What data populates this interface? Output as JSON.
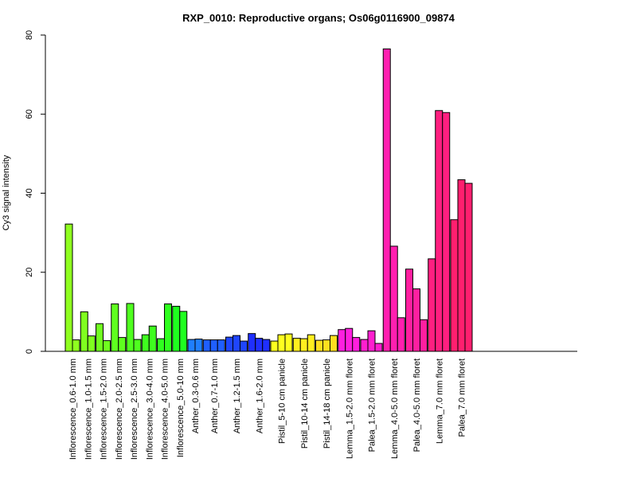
{
  "chart_data": {
    "type": "bar",
    "title": "RXP_0010: Reproductive organs; Os06g0116900_09874",
    "xlabel": "",
    "ylabel": "Cy3 signal intensity",
    "ylim": [
      0,
      80
    ],
    "yticks": [
      0,
      20,
      40,
      60,
      80
    ],
    "grid": false,
    "legend": "none",
    "groups": [
      {
        "label": "Inflorescence_0.6-1.0 mm",
        "color": "#8fff1f",
        "values": [
          32.2,
          2.9
        ]
      },
      {
        "label": "Inflorescence_1.0-1.5 mm",
        "color": "#80ff1f",
        "values": [
          10.0,
          3.9
        ]
      },
      {
        "label": "Inflorescence_1.5-2.0 mm",
        "color": "#70ff1f",
        "values": [
          7.0,
          2.7
        ]
      },
      {
        "label": "Inflorescence_2.0-2.5 mm",
        "color": "#5fff1f",
        "values": [
          12.0,
          3.5
        ]
      },
      {
        "label": "Inflorescence_2.5-3.0 mm",
        "color": "#4fff1f",
        "values": [
          12.1,
          3.0
        ]
      },
      {
        "label": "Inflorescence_3.0-4.0 mm",
        "color": "#3fff1f",
        "values": [
          4.2,
          6.4
        ]
      },
      {
        "label": "Inflorescence_4.0-5.0 mm",
        "color": "#2fff1f",
        "values": [
          3.2,
          12.0
        ]
      },
      {
        "label": "Inflorescence_5.0-10 mm",
        "color": "#1fff1f",
        "values": [
          11.4,
          10.1
        ]
      },
      {
        "label": "Anther_0.3-0.6 mm",
        "color": "#1f7fff",
        "values": [
          3.0,
          3.1
        ]
      },
      {
        "label": "Anther_0.7-1.0 mm",
        "color": "#1f5fff",
        "values": [
          2.9,
          2.9,
          2.9
        ]
      },
      {
        "label": "Anther_1.2-1.5 mm",
        "color": "#1f45ff",
        "values": [
          3.6,
          4.0,
          2.6
        ]
      },
      {
        "label": "Anther_1.6-2.0 mm",
        "color": "#1f2fff",
        "values": [
          4.5,
          3.3,
          3.0
        ]
      },
      {
        "label": "Pistil_5-10 cm panicle",
        "color": "#ffff1f",
        "values": [
          2.6,
          4.2,
          4.4
        ]
      },
      {
        "label": "Pistil_10-14 cm panicle",
        "color": "#ffef1f",
        "values": [
          3.3,
          3.2,
          4.2
        ]
      },
      {
        "label": "Pistil_14-18 cm panicle",
        "color": "#ffdf1f",
        "values": [
          2.8,
          2.9,
          4.0
        ]
      },
      {
        "label": "Lemma_1.5-2.0 mm floret",
        "color": "#ff1fdf",
        "values": [
          5.5,
          5.8,
          3.5
        ]
      },
      {
        "label": "Palea_1.5-2.0 mm floret",
        "color": "#ff1fcf",
        "values": [
          3.0,
          5.2,
          2.0
        ]
      },
      {
        "label": "Lemma_4.0-5.0 mm floret",
        "color": "#ff1fb0",
        "values": [
          76.5,
          26.6,
          8.5
        ]
      },
      {
        "label": "Palea_4.0-5.0 mm floret",
        "color": "#ff1f9f",
        "values": [
          20.8,
          15.8,
          8.0
        ]
      },
      {
        "label": "Lemma_7.0 mm floret",
        "color": "#ff1f80",
        "values": [
          23.4,
          60.9,
          60.4
        ]
      },
      {
        "label": "Palea_7.0 mm floret",
        "color": "#ff1f6f",
        "values": [
          33.3,
          43.4,
          42.5
        ]
      }
    ]
  }
}
